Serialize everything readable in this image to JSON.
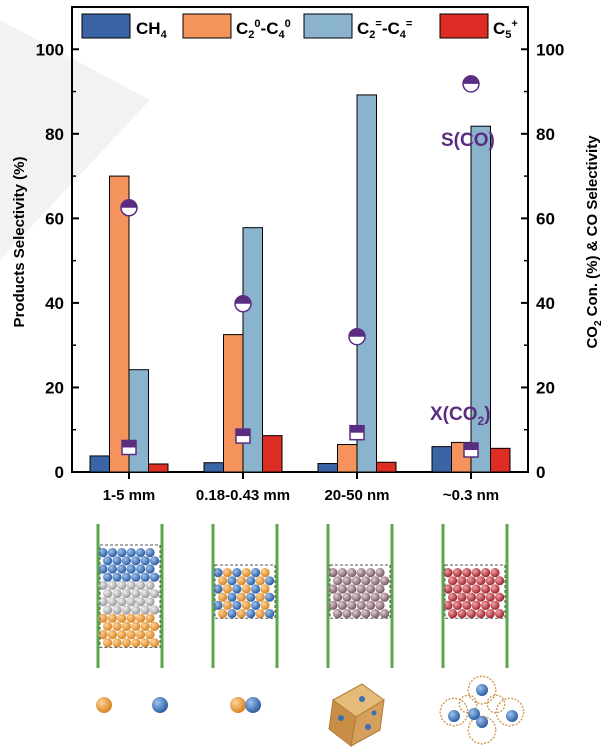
{
  "chart_data": {
    "type": "bar",
    "categories": [
      "1-5 mm",
      "0.18-0.43 mm",
      "20-50 nm",
      "~0.3 nm"
    ],
    "series": [
      {
        "name": "CH4",
        "name_main": "CH",
        "name_sub": "4",
        "color": "#3b64a6",
        "values": [
          3.8,
          2.2,
          2.0,
          6.0
        ]
      },
      {
        "name": "C2⁰-C4⁰",
        "color": "#f4935c",
        "values": [
          70.0,
          32.5,
          6.5,
          7.0
        ]
      },
      {
        "name": "C2⁼-C4⁼",
        "color": "#8ab4cd",
        "values": [
          24.2,
          57.8,
          89.2,
          81.8
        ]
      },
      {
        "name": "C5⁺",
        "name_main": "C",
        "name_sub": "5",
        "name_sup": "+",
        "color": "#dd2d24",
        "values": [
          1.9,
          8.6,
          2.3,
          5.6
        ]
      }
    ],
    "markers": [
      {
        "name": "S(CO)",
        "label": "S(CO)",
        "style": "half-filled-circle",
        "color": "#5b2d82",
        "values": [
          62.5,
          39.8,
          32.0,
          91.8
        ]
      },
      {
        "name": "X(CO2)",
        "label_main": "X(CO",
        "label_sub": "2",
        "label_close": ")",
        "style": "half-filled-square",
        "color": "#5b2d82",
        "values": [
          5.8,
          8.5,
          9.3,
          5.2
        ]
      }
    ],
    "ylim": [
      0,
      110
    ],
    "yticks": [
      "0",
      "20",
      "40",
      "60",
      "80",
      "100"
    ],
    "ylabel": "Products Selectivity (%)",
    "y2label_main": "CO",
    "y2label_sub": "2",
    "y2label_rest": " Con. (%) & CO Selectivity",
    "y2lim": [
      0,
      110
    ],
    "y2ticks": [
      "0",
      "20",
      "40",
      "60",
      "80",
      "100"
    ],
    "legend_position": "top",
    "legend_text": {
      "c2c4_paraffin": {
        "a": "C",
        "b": "2",
        "c": "0",
        "d": "-C",
        "e": "4",
        "f": "0"
      },
      "c2c4_olefin": {
        "a": "C",
        "b": "2",
        "c": "=",
        "d": "-C",
        "e": "4",
        "f": "="
      }
    }
  },
  "colors": {
    "green_wall": "#5aa84a",
    "iron_orange": "#e79a3d",
    "cobalt_blue": "#3a6fb5",
    "grey_sphere": "#b8b8b8",
    "mauve_sphere": "#9e8088",
    "red_sphere": "#c0414d",
    "zeolite_frame": "#d19a55",
    "cube_tan": "#d4a05c"
  },
  "icons": [
    "reactor-bed-1",
    "reactor-bed-2",
    "reactor-bed-3",
    "reactor-bed-4",
    "separate-spheres-icon",
    "paired-spheres-icon",
    "cube-particle-icon",
    "zeolite-cage-icon"
  ]
}
